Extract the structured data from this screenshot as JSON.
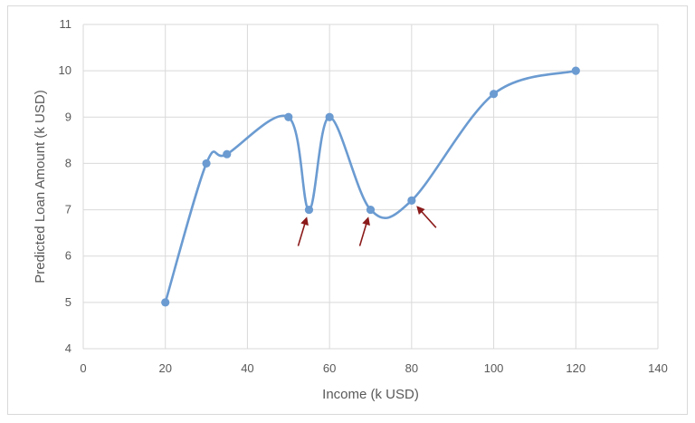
{
  "chart_data": {
    "type": "line",
    "smooth": true,
    "title": "",
    "xlabel": "Income (k USD)",
    "ylabel": "Predicted Loan Amount (k USD)",
    "xlim": [
      0,
      140
    ],
    "ylim": [
      4,
      11
    ],
    "xticks": [
      0,
      20,
      40,
      60,
      80,
      100,
      120,
      140
    ],
    "yticks": [
      4,
      5,
      6,
      7,
      8,
      9,
      10,
      11
    ],
    "grid": true,
    "legend": "none",
    "series": [
      {
        "color": "#6b9bd1",
        "x": [
          20,
          30,
          35,
          50,
          55,
          60,
          70,
          80,
          100,
          120
        ],
        "y": [
          5,
          8,
          8.2,
          9,
          7,
          9,
          7,
          7.2,
          9.5,
          10
        ]
      }
    ],
    "annotations": [
      {
        "type": "arrow",
        "color": "#8b1a1a",
        "target": [
          55,
          7
        ]
      },
      {
        "type": "arrow",
        "color": "#8b1a1a",
        "target": [
          70,
          7
        ]
      },
      {
        "type": "arrow",
        "color": "#8b1a1a",
        "target": [
          80,
          7.2
        ]
      }
    ]
  }
}
